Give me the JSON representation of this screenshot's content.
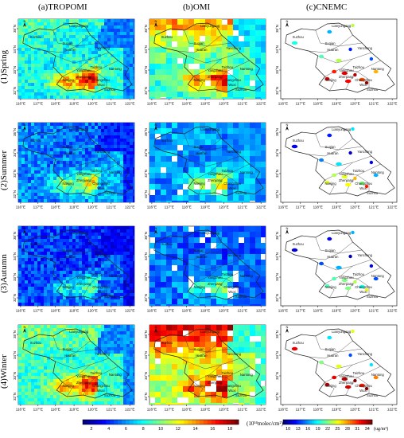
{
  "column_titles": [
    "(a)TROPOMI",
    "(b)OMI",
    "(c)CNEMC"
  ],
  "row_titles": [
    "(1)Spring",
    "(2)Summer",
    "(3)Autumn",
    "(4)Winter"
  ],
  "x_ticks": [
    "116°E",
    "117°E",
    "118°E",
    "119°E",
    "120°E",
    "121°E",
    "122°E"
  ],
  "y_ticks": [
    "35°N",
    "34°N",
    "33°N",
    "32°N"
  ],
  "north_arrow": "N",
  "city_labels": [
    "Lianyungang",
    "Xuzhou",
    "Suqian",
    "Yancheng",
    "Huai'an",
    "Nantong",
    "Yangzhou",
    "Taizhou",
    "Zhenjiang",
    "Changzhou",
    "Nanjing",
    "Wuxi",
    "Suzhou"
  ],
  "colorbar_satellite": {
    "ticks": [
      "2",
      "4",
      "6",
      "8",
      "10",
      "12",
      "14",
      "16",
      "18"
    ],
    "unit": "(10¹⁴molec/cm²)"
  },
  "colorbar_ground": {
    "ticks": [
      "10",
      "13",
      "16",
      "19",
      "22",
      "25",
      "28",
      "31",
      "34"
    ],
    "unit": "(ug/m³)"
  },
  "colors": {
    "colormap": [
      "#00007f",
      "#0000ff",
      "#0080ff",
      "#00ffff",
      "#80ff80",
      "#ffff00",
      "#ff8000",
      "#ff0000",
      "#7f0000"
    ],
    "background": "#ffffff"
  },
  "fields": {
    "tropomi": [
      {
        "season": "Spring",
        "base": 0.36,
        "gradient": -0.06,
        "hotspot": 0.55,
        "north": 0.06,
        "sea_level": 0.25,
        "coast_level": 0.42
      },
      {
        "season": "Summer",
        "base": 0.24,
        "gradient": -0.05,
        "hotspot": 0.42,
        "north": 0.0,
        "sea_level": 0.16,
        "coast_level": 0.3
      },
      {
        "season": "Autumn",
        "base": 0.18,
        "gradient": -0.04,
        "hotspot": 0.32,
        "north": 0.0,
        "sea_level": 0.12,
        "coast_level": 0.22
      },
      {
        "season": "Winter",
        "base": 0.4,
        "gradient": -0.05,
        "hotspot": 0.5,
        "north": 0.08,
        "sea_level": 0.26,
        "coast_level": 0.42
      }
    ],
    "omi": [
      {
        "season": "Spring",
        "base": 0.42,
        "gradient": 0.02,
        "hotspot": 0.48,
        "north": 0.3,
        "sea_level": 0.35,
        "coast_level": 0.42
      },
      {
        "season": "Summer",
        "base": 0.26,
        "gradient": -0.03,
        "hotspot": 0.4,
        "north": 0.02,
        "sea_level": 0.26,
        "coast_level": 0.3
      },
      {
        "season": "Autumn",
        "base": 0.22,
        "gradient": -0.03,
        "hotspot": 0.3,
        "north": 0.0,
        "sea_level": 0.2,
        "coast_level": 0.24
      },
      {
        "season": "Winter",
        "base": 0.55,
        "gradient": 0.0,
        "hotspot": 0.4,
        "north": 0.35,
        "sea_level": 0.42,
        "coast_level": 0.52
      }
    ],
    "cnemc": [
      {
        "season": "Spring",
        "sites": [
          [
            0.62,
            0.08,
            0.55
          ],
          [
            0.42,
            0.16,
            0.3
          ],
          [
            0.12,
            0.3,
            0.4
          ],
          [
            0.6,
            0.38,
            0.15
          ],
          [
            0.35,
            0.47,
            0.45
          ],
          [
            0.5,
            0.52,
            0.55
          ],
          [
            0.78,
            0.5,
            0.2
          ],
          [
            0.46,
            0.66,
            0.85
          ],
          [
            0.55,
            0.68,
            0.9
          ],
          [
            0.64,
            0.7,
            0.95
          ],
          [
            0.4,
            0.75,
            0.92
          ],
          [
            0.7,
            0.76,
            0.8
          ],
          [
            0.74,
            0.8,
            0.98
          ],
          [
            0.82,
            0.66,
            0.7
          ],
          [
            0.58,
            0.78,
            0.88
          ]
        ]
      },
      {
        "season": "Summer",
        "sites": [
          [
            0.62,
            0.08,
            0.35
          ],
          [
            0.42,
            0.16,
            0.15
          ],
          [
            0.12,
            0.3,
            0.1
          ],
          [
            0.6,
            0.38,
            0.08
          ],
          [
            0.35,
            0.47,
            0.25
          ],
          [
            0.5,
            0.52,
            0.35
          ],
          [
            0.78,
            0.5,
            0.1
          ],
          [
            0.46,
            0.66,
            0.55
          ],
          [
            0.55,
            0.68,
            0.6
          ],
          [
            0.64,
            0.7,
            0.7
          ],
          [
            0.4,
            0.75,
            0.6
          ],
          [
            0.7,
            0.76,
            0.5
          ],
          [
            0.74,
            0.8,
            0.85
          ],
          [
            0.82,
            0.66,
            0.3
          ],
          [
            0.58,
            0.78,
            0.62
          ]
        ]
      },
      {
        "season": "Autumn",
        "sites": [
          [
            0.62,
            0.08,
            0.3
          ],
          [
            0.42,
            0.16,
            0.1
          ],
          [
            0.12,
            0.3,
            0.08
          ],
          [
            0.6,
            0.38,
            0.05
          ],
          [
            0.35,
            0.47,
            0.2
          ],
          [
            0.5,
            0.52,
            0.3
          ],
          [
            0.78,
            0.5,
            0.1
          ],
          [
            0.46,
            0.66,
            0.45
          ],
          [
            0.55,
            0.68,
            0.5
          ],
          [
            0.64,
            0.7,
            0.55
          ],
          [
            0.4,
            0.75,
            0.45
          ],
          [
            0.7,
            0.76,
            0.4
          ],
          [
            0.74,
            0.8,
            0.6
          ],
          [
            0.82,
            0.66,
            0.2
          ],
          [
            0.58,
            0.78,
            0.5
          ]
        ]
      },
      {
        "season": "Winter",
        "sites": [
          [
            0.62,
            0.08,
            0.6
          ],
          [
            0.42,
            0.16,
            0.35
          ],
          [
            0.12,
            0.3,
            0.9
          ],
          [
            0.6,
            0.38,
            0.2
          ],
          [
            0.35,
            0.47,
            0.5
          ],
          [
            0.5,
            0.52,
            0.6
          ],
          [
            0.78,
            0.5,
            0.35
          ],
          [
            0.46,
            0.66,
            0.9
          ],
          [
            0.55,
            0.68,
            0.95
          ],
          [
            0.64,
            0.7,
            1.0
          ],
          [
            0.4,
            0.75,
            0.95
          ],
          [
            0.7,
            0.76,
            0.85
          ],
          [
            0.74,
            0.8,
            1.0
          ],
          [
            0.82,
            0.66,
            0.75
          ],
          [
            0.58,
            0.78,
            0.92
          ]
        ]
      }
    ]
  }
}
